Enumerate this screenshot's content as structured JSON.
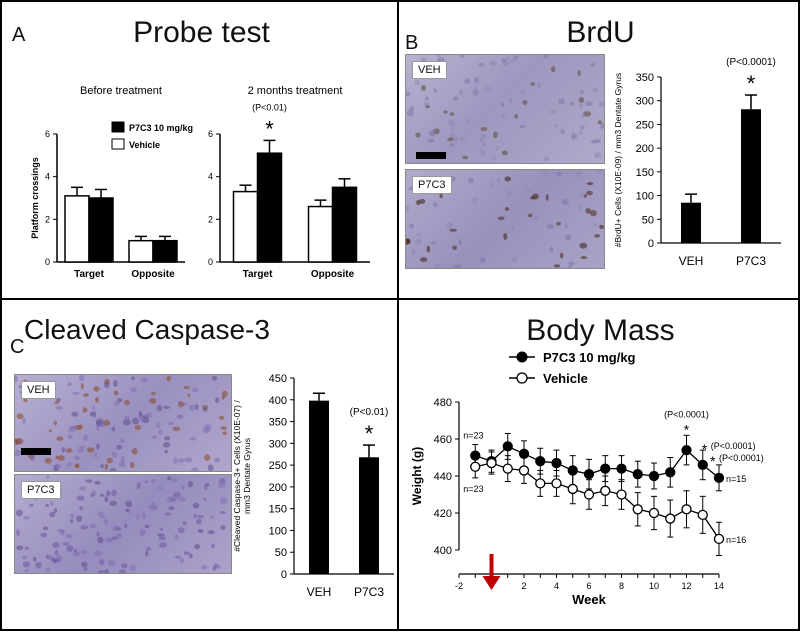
{
  "panels": {
    "A": {
      "letter": "A",
      "title": "Probe test"
    },
    "B": {
      "letter": "B",
      "title": "BrdU",
      "micro_labels": [
        "VEH",
        "P7C3"
      ]
    },
    "C": {
      "letter": "C",
      "title": "Cleaved Caspase-3",
      "micro_labels": [
        "VEH",
        "P7C3"
      ]
    },
    "D": {
      "title": "Body Mass"
    }
  },
  "colors": {
    "treatment": "#000000",
    "vehicle": "#ffffff",
    "arrow": "#c00000",
    "tissue": "#a8a0c8"
  },
  "chart_data": [
    {
      "id": "probe-before",
      "type": "bar",
      "subtitle": "Before treatment",
      "ylabel": "Platform crossings",
      "ylim": [
        0,
        6
      ],
      "yticks": [
        0,
        2,
        4,
        6
      ],
      "categories": [
        "Target",
        "Opposite"
      ],
      "series": [
        {
          "name": "Vehicle",
          "color": "#ffffff",
          "values": [
            3.1,
            1.0
          ],
          "errors": [
            0.4,
            0.2
          ]
        },
        {
          "name": "P7C3 10 mg/kg",
          "color": "#000000",
          "values": [
            3.0,
            1.0
          ],
          "errors": [
            0.4,
            0.2
          ]
        }
      ],
      "legend": [
        "P7C3 10 mg/kg",
        "Vehicle"
      ]
    },
    {
      "id": "probe-2months",
      "type": "bar",
      "subtitle": "2 months treatment",
      "ylim": [
        0,
        6
      ],
      "yticks": [
        0,
        2,
        4,
        6
      ],
      "categories": [
        "Target",
        "Opposite"
      ],
      "series": [
        {
          "name": "Vehicle",
          "color": "#ffffff",
          "values": [
            3.3,
            2.6
          ],
          "errors": [
            0.3,
            0.3
          ]
        },
        {
          "name": "P7C3 10 mg/kg",
          "color": "#000000",
          "values": [
            5.1,
            3.5
          ],
          "errors": [
            0.6,
            0.4
          ]
        }
      ],
      "annotations": [
        {
          "text": "(P<0.01)",
          "category": "Target"
        },
        {
          "text": "*",
          "category": "Target"
        }
      ]
    },
    {
      "id": "brdu",
      "type": "bar",
      "ylabel": "#BrdU+ Cells (X10E-09) / mm3 Dentate Gyrus",
      "ylim": [
        0,
        350
      ],
      "yticks": [
        0,
        50,
        100,
        150,
        200,
        250,
        300,
        350
      ],
      "categories": [
        "VEH",
        "P7C3"
      ],
      "values": [
        85,
        282
      ],
      "errors": [
        18,
        30
      ],
      "annotations": [
        {
          "text": "(P<0.0001)",
          "category": "P7C3"
        },
        {
          "text": "*",
          "category": "P7C3"
        }
      ]
    },
    {
      "id": "caspase",
      "type": "bar",
      "ylabel": "#Cleaved Caspase-3+ Cells (X10E-07) / mm3 Dentate Gyrus",
      "ylim": [
        0,
        450
      ],
      "yticks": [
        0,
        50,
        100,
        150,
        200,
        250,
        300,
        350,
        400,
        450
      ],
      "categories": [
        "VEH",
        "P7C3"
      ],
      "values": [
        398,
        268
      ],
      "errors": [
        17,
        28
      ],
      "annotations": [
        {
          "text": "(P<0.01)",
          "category": "P7C3"
        },
        {
          "text": "*",
          "category": "P7C3"
        }
      ]
    },
    {
      "id": "body-mass",
      "type": "line",
      "xlabel": "Week",
      "ylabel": "Weight (g)",
      "xlim": [
        -2,
        14
      ],
      "ylim": [
        400,
        480
      ],
      "xticks": [
        -2,
        2,
        4,
        6,
        8,
        10,
        12,
        14
      ],
      "yticks": [
        400,
        420,
        440,
        460,
        480
      ],
      "legend": [
        "P7C3 10 mg/kg",
        "Vehicle"
      ],
      "x": [
        -1,
        0,
        1,
        2,
        3,
        4,
        5,
        6,
        7,
        8,
        9,
        10,
        11,
        12,
        13,
        14
      ],
      "series": [
        {
          "name": "P7C3 10 mg/kg",
          "fill": "#000000",
          "values": [
            451,
            448,
            456,
            452,
            448,
            447,
            443,
            441,
            444,
            444,
            441,
            440,
            442,
            454,
            446,
            439
          ],
          "errors": [
            6,
            6,
            7,
            7,
            7,
            7,
            8,
            8,
            7,
            7,
            7,
            7,
            8,
            8,
            8,
            7
          ]
        },
        {
          "name": "Vehicle",
          "fill": "#ffffff",
          "values": [
            445,
            447,
            444,
            443,
            436,
            436,
            433,
            430,
            432,
            430,
            422,
            420,
            417,
            422,
            419,
            406
          ],
          "errors": [
            6,
            6,
            7,
            7,
            7,
            7,
            8,
            8,
            8,
            8,
            9,
            9,
            10,
            10,
            10,
            9
          ]
        }
      ],
      "annotations": [
        {
          "text": "n=23",
          "near": "start-top"
        },
        {
          "text": "n=23",
          "near": "start-bottom"
        },
        {
          "text": "n=15",
          "near": "end-top"
        },
        {
          "text": "n=16",
          "near": "end-bottom"
        },
        {
          "text": "(P<0.0001)",
          "week": 12
        },
        {
          "text": "*",
          "week": 12
        },
        {
          "text": "*",
          "week": 13
        },
        {
          "text": "(P<0.0001)",
          "week": 13
        },
        {
          "text": "*",
          "week": 14
        },
        {
          "text": "(P<0.0001)",
          "week": 14
        }
      ],
      "treatment_start_week": 0
    }
  ]
}
